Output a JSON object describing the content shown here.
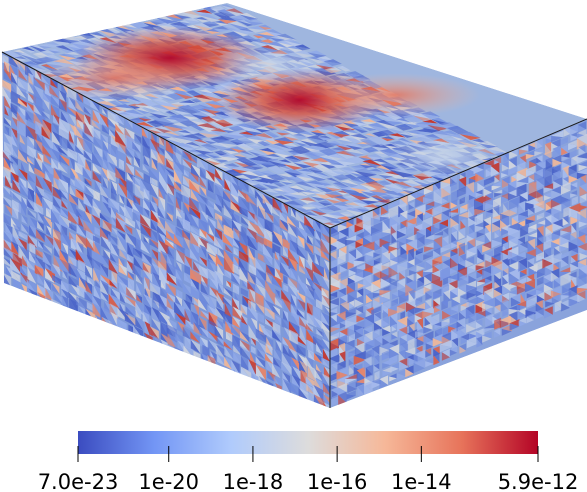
{
  "colorbar": {
    "scale": "log",
    "range": [
      7e-23,
      5.9e-12
    ],
    "colormap": "cool-to-warm",
    "stops": [
      "#3b4cc0",
      "#7396f5",
      "#b0cbfc",
      "#dddcdc",
      "#f6b899",
      "#e7745b",
      "#b40426"
    ],
    "ticks": [
      {
        "label": "7.0e-23",
        "value": 7e-23
      },
      {
        "label": "1e-20",
        "value": 1e-20
      },
      {
        "label": "1e-18",
        "value": 1e-18
      },
      {
        "label": "1e-16",
        "value": 1e-16
      },
      {
        "label": "1e-14",
        "value": 1e-14
      },
      {
        "label": "5.9e-12",
        "value": 5.9e-12
      }
    ]
  },
  "mesh": {
    "shape": "box",
    "faces": [
      "top",
      "front",
      "right"
    ]
  }
}
